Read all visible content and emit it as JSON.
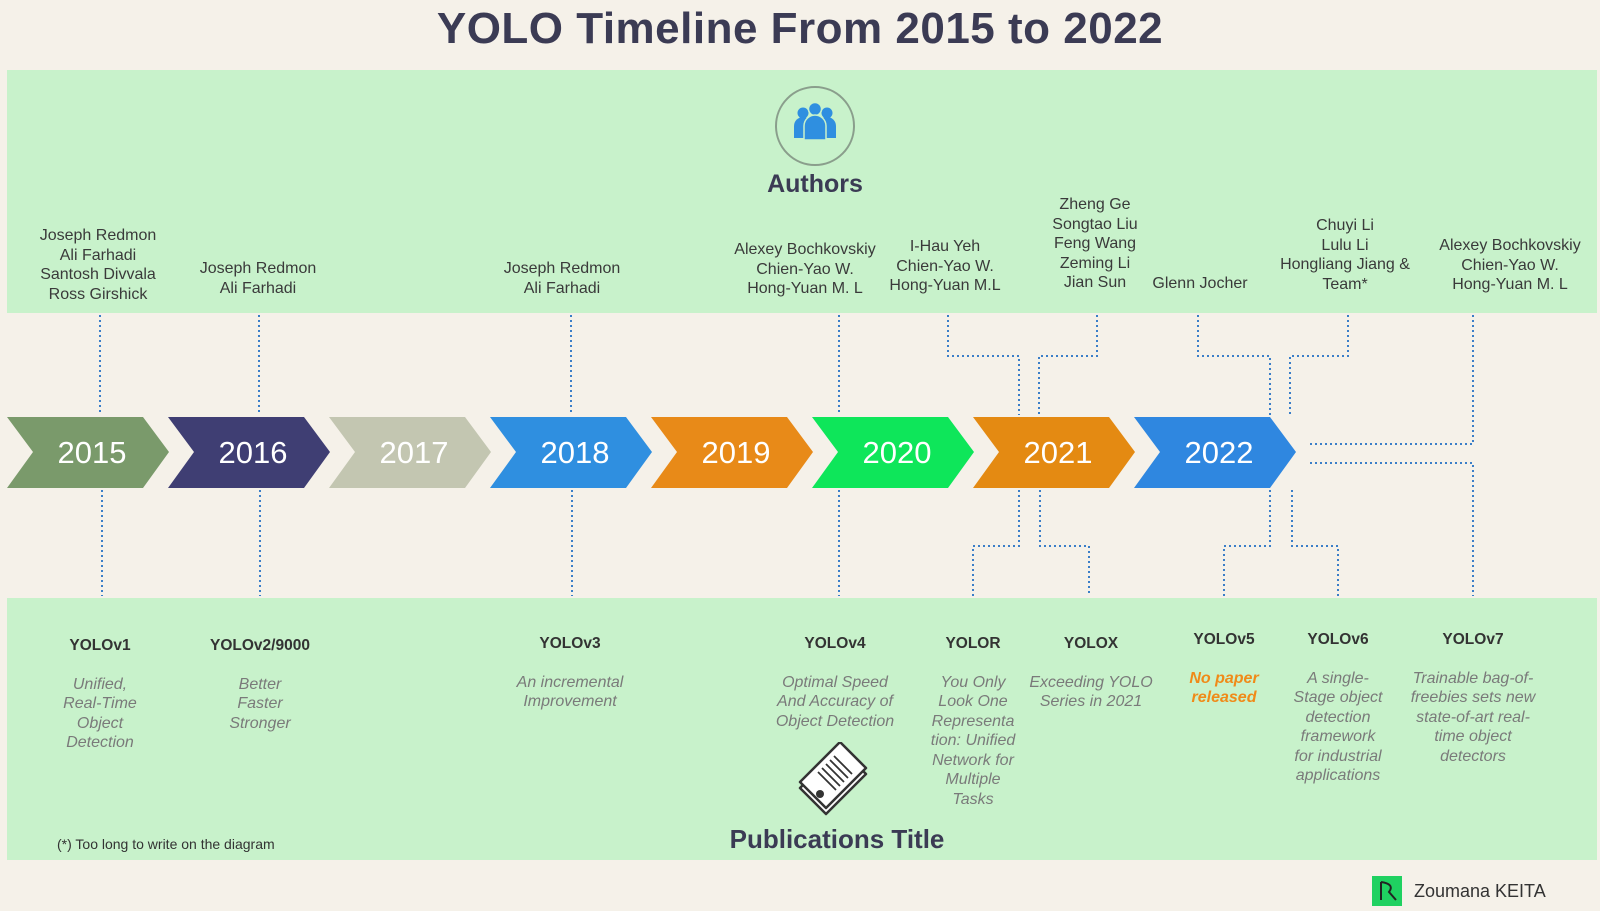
{
  "title": "YOLO Timeline From 2015 to 2022",
  "authors_label": "Authors",
  "publications_label": "Publications Title",
  "icons": {
    "authors": "people-group-icon",
    "publications": "paper-stack-icon",
    "credit": "brand-logo-icon"
  },
  "years": [
    {
      "label": "2015",
      "color": "#7a9a6b"
    },
    {
      "label": "2016",
      "color": "#3f3e73"
    },
    {
      "label": "2017",
      "color": "#c3c6b1"
    },
    {
      "label": "2018",
      "color": "#2f8fe0"
    },
    {
      "label": "2019",
      "color": "#e88a18"
    },
    {
      "label": "2020",
      "color": "#0ee65a"
    },
    {
      "label": "2021",
      "color": "#e48a12"
    },
    {
      "label": "2022",
      "color": "#2f87e0"
    }
  ],
  "authors": [
    "Joseph Redmon\nAli Farhadi\nSantosh Divvala\nRoss Girshick",
    "Joseph Redmon\nAli Farhadi",
    "Joseph Redmon\nAli Farhadi",
    "Alexey Bochkovskiy\nChien-Yao W.\nHong-Yuan M. L",
    "I-Hau Yeh\nChien-Yao W.\nHong-Yuan M.L",
    "Zheng Ge\nSongtao Liu\nFeng Wang\nZeming Li\nJian Sun",
    "Glenn Jocher",
    "Chuyi Li\nLulu Li\nHongliang Jiang &\nTeam*",
    "Alexey Bochkovskiy\nChien-Yao W.\nHong-Yuan M. L"
  ],
  "publications": [
    {
      "name": "YOLOv1",
      "desc": "Unified,\nReal-Time\nObject\nDetection"
    },
    {
      "name": "YOLOv2/9000",
      "desc": "Better\nFaster\nStronger"
    },
    {
      "name": "YOLOv3",
      "desc": "An incremental\nImprovement"
    },
    {
      "name": "YOLOv4",
      "desc": "Optimal Speed\nAnd Accuracy of\nObject Detection"
    },
    {
      "name": "YOLOR",
      "desc": "You Only\nLook One\nRepresenta\ntion: Unified\nNetwork for\nMultiple\nTasks"
    },
    {
      "name": "YOLOX",
      "desc": "Exceeding YOLO\nSeries in 2021"
    },
    {
      "name": "YOLOv5",
      "desc": "No paper\nreleased",
      "highlight": true
    },
    {
      "name": "YOLOv6",
      "desc": "A single-\nStage object\ndetection\nframework\nfor industrial\napplications"
    },
    {
      "name": "YOLOv7",
      "desc": "Trainable bag-of-\nfreebies sets new\nstate-of-art real-\ntime object\ndetectors"
    }
  ],
  "footnote": "(*) Too long to write on the diagram",
  "credit": "Zoumana KEITA",
  "colors": {
    "band": "#c8f2cb",
    "background": "#f5f1e9",
    "connector": "#3a7ec8",
    "title": "#3b3b54",
    "highlight": "#f08a18",
    "credit_logo": "#1fd161"
  }
}
